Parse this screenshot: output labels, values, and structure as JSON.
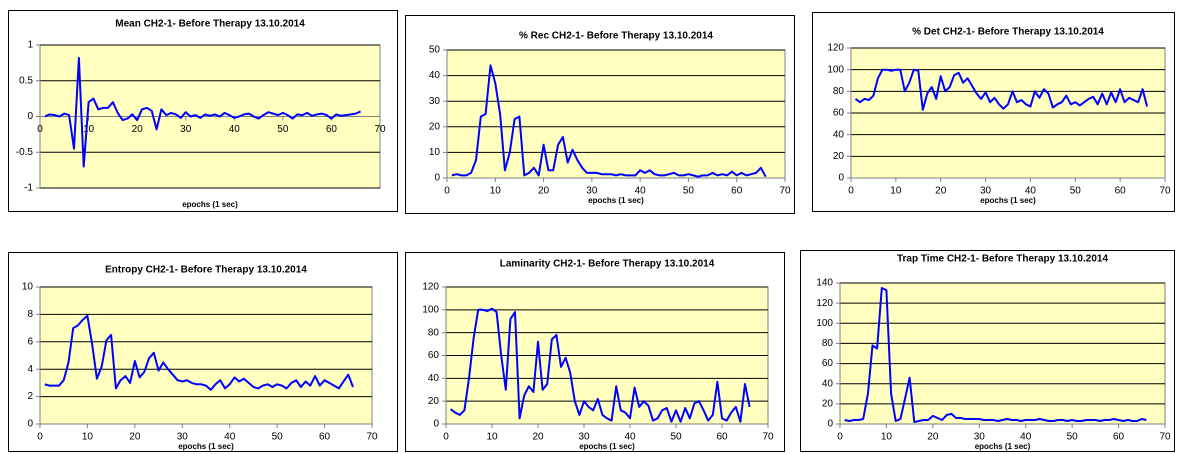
{
  "chart_data": [
    {
      "type": "line",
      "title": "Mean CH2-1- Before Therapy 13.10.2014",
      "x_label": "epochs (1 sec)",
      "x": [
        1,
        2,
        3,
        4,
        5,
        6,
        7,
        8,
        9,
        10,
        11,
        12,
        13,
        14,
        15,
        16,
        17,
        18,
        19,
        20,
        21,
        22,
        23,
        24,
        25,
        26,
        27,
        28,
        29,
        30,
        31,
        32,
        33,
        34,
        35,
        36,
        37,
        38,
        39,
        40,
        41,
        42,
        43,
        44,
        45,
        46,
        47,
        48,
        49,
        50,
        51,
        52,
        53,
        54,
        55,
        56,
        57,
        58,
        59,
        60,
        61,
        62,
        63,
        64,
        65,
        66
      ],
      "values": [
        0,
        0.03,
        0.02,
        0,
        0.04,
        0.02,
        -0.45,
        0.82,
        -0.7,
        0.2,
        0.25,
        0.1,
        0.12,
        0.12,
        0.2,
        0.05,
        -0.05,
        -0.03,
        0.03,
        -0.05,
        0.1,
        0.12,
        0.08,
        -0.18,
        0.1,
        0.02,
        0.05,
        0.03,
        -0.02,
        0.06,
        0,
        0.02,
        -0.02,
        0.03,
        0.01,
        0.03,
        0,
        0.05,
        0.02,
        -0.02,
        0,
        0.03,
        0.04,
        0,
        -0.03,
        0.02,
        0.06,
        0.04,
        0.02,
        0.05,
        0.02,
        -0.03,
        0.03,
        0.02,
        0.05,
        0.01,
        0.03,
        0.04,
        0.02,
        -0.03,
        0.03,
        0.01,
        0.02,
        0.03,
        0.04,
        0.07
      ],
      "color": "#0000ff",
      "xlim": [
        0,
        70
      ],
      "xticks": [
        0,
        10,
        20,
        30,
        40,
        50,
        60,
        70
      ],
      "ylim": [
        -1,
        1
      ],
      "yticks": [
        -1,
        -0.5,
        0,
        0.5,
        1
      ],
      "grid": true,
      "x_axis_crosses": 0
    },
    {
      "type": "line",
      "title": "% Rec CH2-1- Before Therapy 13.10.2014",
      "x_label": "epochs (1 sec)",
      "x": [
        1,
        2,
        3,
        4,
        5,
        6,
        7,
        8,
        9,
        10,
        11,
        12,
        13,
        14,
        15,
        16,
        17,
        18,
        19,
        20,
        21,
        22,
        23,
        24,
        25,
        26,
        27,
        28,
        29,
        30,
        31,
        32,
        33,
        34,
        35,
        36,
        37,
        38,
        39,
        40,
        41,
        42,
        43,
        44,
        45,
        46,
        47,
        48,
        49,
        50,
        51,
        52,
        53,
        54,
        55,
        56,
        57,
        58,
        59,
        60,
        61,
        62,
        63,
        64,
        65,
        66
      ],
      "values": [
        1,
        1.5,
        1,
        1,
        2,
        7,
        24,
        25,
        44,
        37,
        25,
        3,
        10,
        23,
        24,
        1,
        2,
        4,
        1,
        13,
        3,
        3,
        13,
        16,
        6,
        11,
        7,
        4,
        2,
        2,
        2,
        1.5,
        1.5,
        1.5,
        1,
        1.5,
        1,
        1,
        1,
        3,
        2,
        3,
        1.5,
        1,
        1,
        1.5,
        2,
        1,
        1,
        1.5,
        1,
        0.5,
        1,
        1,
        2,
        1,
        1.5,
        1,
        2.5,
        1,
        2,
        1,
        1.5,
        2,
        4,
        0.5
      ],
      "color": "#0000ff",
      "xlim": [
        0,
        70
      ],
      "xticks": [
        0,
        10,
        20,
        30,
        40,
        50,
        60,
        70
      ],
      "ylim": [
        0,
        50
      ],
      "yticks": [
        0,
        10,
        20,
        30,
        40,
        50
      ],
      "grid": true
    },
    {
      "type": "line",
      "title": "% Det CH2-1- Before Therapy 13.10.2014",
      "x_label": "epochs (1 sec)",
      "x": [
        1,
        2,
        3,
        4,
        5,
        6,
        7,
        8,
        9,
        10,
        11,
        12,
        13,
        14,
        15,
        16,
        17,
        18,
        19,
        20,
        21,
        22,
        23,
        24,
        25,
        26,
        27,
        28,
        29,
        30,
        31,
        32,
        33,
        34,
        35,
        36,
        37,
        38,
        39,
        40,
        41,
        42,
        43,
        44,
        45,
        46,
        47,
        48,
        49,
        50,
        51,
        52,
        53,
        54,
        55,
        56,
        57,
        58,
        59,
        60,
        61,
        62,
        63,
        64,
        65,
        66
      ],
      "values": [
        73,
        70,
        73,
        72,
        76,
        92,
        100,
        100,
        99,
        100,
        100,
        80,
        88,
        100,
        99,
        63,
        78,
        84,
        73,
        94,
        80,
        84,
        95,
        97,
        88,
        92,
        85,
        78,
        73,
        79,
        70,
        74,
        68,
        64,
        68,
        80,
        70,
        72,
        68,
        66,
        80,
        74,
        82,
        78,
        65,
        68,
        70,
        76,
        68,
        70,
        67,
        70,
        73,
        75,
        68,
        78,
        68,
        79,
        70,
        82,
        70,
        74,
        72,
        70,
        82,
        66
      ],
      "color": "#0000ff",
      "xlim": [
        0,
        70
      ],
      "xticks": [
        0,
        10,
        20,
        30,
        40,
        50,
        60,
        70
      ],
      "ylim": [
        0,
        120
      ],
      "yticks": [
        0,
        20,
        40,
        60,
        80,
        100,
        120
      ],
      "grid": true
    },
    {
      "type": "line",
      "title": "Entropy CH2-1- Before Therapy 13.10.2014",
      "x_label": "epochs (1 sec)",
      "x": [
        1,
        2,
        3,
        4,
        5,
        6,
        7,
        8,
        9,
        10,
        11,
        12,
        13,
        14,
        15,
        16,
        17,
        18,
        19,
        20,
        21,
        22,
        23,
        24,
        25,
        26,
        27,
        28,
        29,
        30,
        31,
        32,
        33,
        34,
        35,
        36,
        37,
        38,
        39,
        40,
        41,
        42,
        43,
        44,
        45,
        46,
        47,
        48,
        49,
        50,
        51,
        52,
        53,
        54,
        55,
        56,
        57,
        58,
        59,
        60,
        61,
        62,
        63,
        64,
        65,
        66
      ],
      "values": [
        2.9,
        2.8,
        2.8,
        2.8,
        3.2,
        4.5,
        7,
        7.2,
        7.6,
        7.9,
        5.8,
        3.3,
        4.2,
        6.1,
        6.5,
        2.6,
        3.2,
        3.5,
        3,
        4.6,
        3.4,
        3.8,
        4.8,
        5.2,
        3.9,
        4.5,
        4,
        3.6,
        3.2,
        3.1,
        3.2,
        3,
        2.9,
        2.9,
        2.8,
        2.5,
        2.9,
        3.2,
        2.6,
        2.9,
        3.4,
        3.1,
        3.3,
        3,
        2.7,
        2.6,
        2.8,
        2.9,
        2.7,
        2.9,
        2.8,
        2.6,
        3,
        3.2,
        2.7,
        3.1,
        2.8,
        3.5,
        2.8,
        3.2,
        3,
        2.8,
        2.6,
        3.1,
        3.6,
        2.7
      ],
      "color": "#0000ff",
      "xlim": [
        0,
        70
      ],
      "xticks": [
        0,
        10,
        20,
        30,
        40,
        50,
        60,
        70
      ],
      "ylim": [
        0,
        10
      ],
      "yticks": [
        0,
        2,
        4,
        6,
        8,
        10
      ],
      "grid": true
    },
    {
      "type": "line",
      "title": "Laminarity CH2-1- Before Therapy 13.10.2014",
      "x_label": "epochs (1 sec)",
      "x": [
        1,
        2,
        3,
        4,
        5,
        6,
        7,
        8,
        9,
        10,
        11,
        12,
        13,
        14,
        15,
        16,
        17,
        18,
        19,
        20,
        21,
        22,
        23,
        24,
        25,
        26,
        27,
        28,
        29,
        30,
        31,
        32,
        33,
        34,
        35,
        36,
        37,
        38,
        39,
        40,
        41,
        42,
        43,
        44,
        45,
        46,
        47,
        48,
        49,
        50,
        51,
        52,
        53,
        54,
        55,
        56,
        57,
        58,
        59,
        60,
        61,
        62,
        63,
        64,
        65,
        66
      ],
      "values": [
        13,
        10,
        8,
        12,
        40,
        75,
        100,
        100,
        99,
        101,
        98,
        60,
        30,
        92,
        98,
        5,
        25,
        33,
        28,
        72,
        30,
        35,
        74,
        78,
        50,
        58,
        45,
        20,
        8,
        20,
        15,
        12,
        22,
        8,
        5,
        3,
        33,
        12,
        10,
        5,
        32,
        15,
        20,
        16,
        3,
        5,
        12,
        14,
        2,
        12,
        2,
        14,
        5,
        18,
        20,
        12,
        3,
        8,
        37,
        5,
        3,
        10,
        15,
        2,
        35,
        15
      ],
      "color": "#0000ff",
      "xlim": [
        0,
        70
      ],
      "xticks": [
        0,
        10,
        20,
        30,
        40,
        50,
        60,
        70
      ],
      "ylim": [
        0,
        120
      ],
      "yticks": [
        0,
        20,
        40,
        60,
        80,
        100,
        120
      ],
      "grid": true
    },
    {
      "type": "line",
      "title": "Trap Time CH2-1- Before Therapy 13.10.2014",
      "x_label": "epochs (1 sec)",
      "x": [
        1,
        2,
        3,
        4,
        5,
        6,
        7,
        8,
        9,
        10,
        11,
        12,
        13,
        14,
        15,
        16,
        17,
        18,
        19,
        20,
        21,
        22,
        23,
        24,
        25,
        26,
        27,
        28,
        29,
        30,
        31,
        32,
        33,
        34,
        35,
        36,
        37,
        38,
        39,
        40,
        41,
        42,
        43,
        44,
        45,
        46,
        47,
        48,
        49,
        50,
        51,
        52,
        53,
        54,
        55,
        56,
        57,
        58,
        59,
        60,
        61,
        62,
        63,
        64,
        65,
        66
      ],
      "values": [
        4,
        3,
        4,
        4,
        5,
        30,
        78,
        75,
        135,
        133,
        30,
        3,
        5,
        25,
        46,
        2,
        3,
        4,
        4,
        8,
        6,
        4,
        9,
        10,
        6,
        6,
        5,
        5,
        5,
        5,
        4,
        4,
        4,
        3,
        4,
        5,
        4,
        4,
        3,
        4,
        4,
        4,
        5,
        4,
        3,
        3,
        4,
        4,
        3,
        4,
        3,
        3,
        4,
        4,
        4,
        3,
        4,
        4,
        5,
        4,
        3,
        4,
        3,
        3,
        5,
        4
      ],
      "color": "#0000ff",
      "xlim": [
        0,
        70
      ],
      "xticks": [
        0,
        10,
        20,
        30,
        40,
        50,
        60,
        70
      ],
      "ylim": [
        0,
        140
      ],
      "yticks": [
        0,
        20,
        40,
        60,
        80,
        100,
        120,
        140
      ],
      "grid": true
    }
  ]
}
